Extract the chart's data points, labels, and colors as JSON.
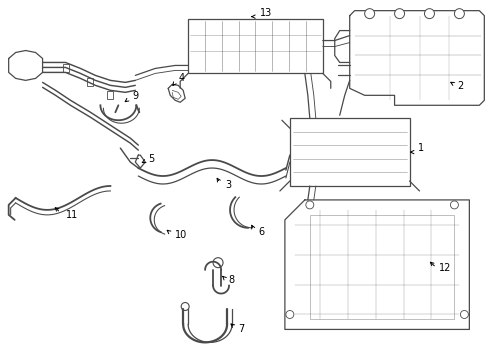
{
  "bg_color": "#ffffff",
  "line_color": "#4a4a4a",
  "text_color": "#000000",
  "fig_width": 4.9,
  "fig_height": 3.6,
  "dpi": 100
}
